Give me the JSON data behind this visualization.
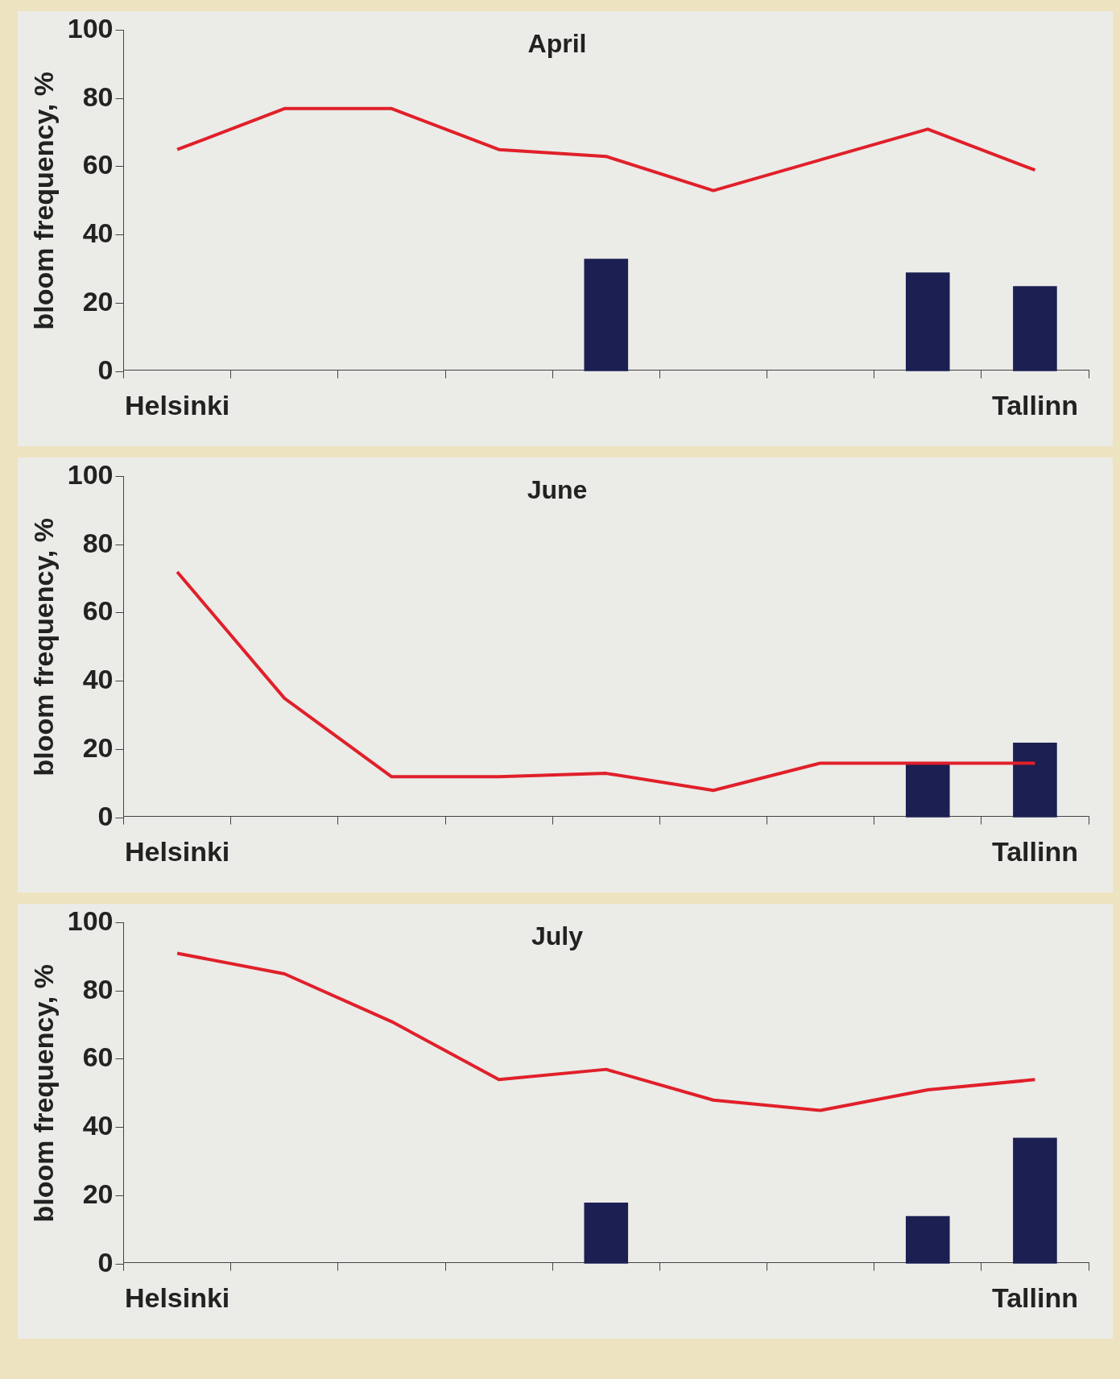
{
  "chart_data": [
    {
      "type": "bar",
      "title": "April",
      "ylabel": "bloom frequency, %",
      "categories": [
        "Helsinki",
        null,
        null,
        null,
        null,
        null,
        null,
        null,
        "Tallinn"
      ],
      "ylim": [
        0,
        100
      ],
      "yticks": [
        0,
        20,
        40,
        60,
        80,
        100
      ],
      "marker": "none",
      "series": [
        {
          "type": "bar",
          "color": "#1b1f52",
          "values": [
            null,
            null,
            null,
            null,
            33,
            null,
            null,
            29,
            25
          ]
        },
        {
          "type": "line",
          "color": "#e0202a",
          "values": [
            65,
            77,
            77,
            65,
            63,
            53,
            62,
            71,
            59
          ]
        }
      ]
    },
    {
      "type": "bar",
      "title": "June",
      "ylabel": "bloom frequency, %",
      "categories": [
        "Helsinki",
        null,
        null,
        null,
        null,
        null,
        null,
        null,
        "Tallinn"
      ],
      "ylim": [
        0,
        100
      ],
      "yticks": [
        0,
        20,
        40,
        60,
        80,
        100
      ],
      "marker": "none",
      "series": [
        {
          "type": "bar",
          "color": "#1b1f52",
          "values": [
            null,
            null,
            null,
            null,
            null,
            null,
            null,
            16,
            22
          ]
        },
        {
          "type": "line",
          "color": "#e0202a",
          "values": [
            72,
            35,
            12,
            12,
            13,
            8,
            16,
            16,
            16
          ]
        }
      ]
    },
    {
      "type": "bar",
      "title": "July",
      "ylabel": "bloom frequency, %",
      "categories": [
        "Helsinki",
        null,
        null,
        null,
        null,
        null,
        null,
        null,
        "Tallinn"
      ],
      "ylim": [
        0,
        100
      ],
      "yticks": [
        0,
        20,
        40,
        60,
        80,
        100
      ],
      "marker": "none",
      "series": [
        {
          "type": "bar",
          "color": "#1b1f52",
          "values": [
            null,
            null,
            null,
            null,
            18,
            null,
            null,
            14,
            37
          ]
        },
        {
          "type": "line",
          "color": "#e0202a",
          "values": [
            91,
            85,
            71,
            54,
            57,
            48,
            45,
            51,
            54
          ]
        }
      ]
    }
  ]
}
